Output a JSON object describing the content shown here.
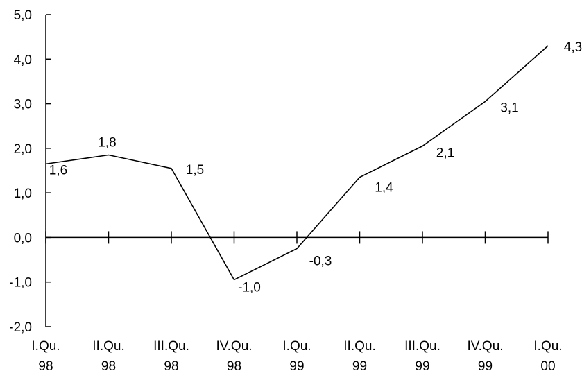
{
  "chart_data": {
    "type": "line",
    "categories": [
      [
        "I.Qu.",
        "98"
      ],
      [
        "II.Qu.",
        "98"
      ],
      [
        "III.Qu.",
        "98"
      ],
      [
        "IV.Qu.",
        "98"
      ],
      [
        "I.Qu.",
        "99"
      ],
      [
        "II.Qu.",
        "99"
      ],
      [
        "III.Qu.",
        "99"
      ],
      [
        "IV.Qu.",
        "99"
      ],
      [
        "I.Qu.",
        "00"
      ]
    ],
    "values": [
      1.65,
      1.85,
      1.55,
      -0.95,
      -0.25,
      1.35,
      2.05,
      3.05,
      4.3
    ],
    "data_labels": [
      "1,6",
      "1,8",
      "1,5",
      "-1,0",
      "-0,3",
      "1,4",
      "2,1",
      "3,1",
      "4,3"
    ],
    "ylim": [
      -2.0,
      5.0
    ],
    "yticks": [
      5.0,
      4.0,
      3.0,
      2.0,
      1.0,
      0.0,
      -1.0,
      -2.0
    ],
    "ytick_labels": [
      "5,0",
      "4,0",
      "3,0",
      "2,0",
      "1,0",
      "0,0",
      "-1,0",
      "-2,0"
    ],
    "title": "",
    "xlabel": "",
    "ylabel": "",
    "grid": false,
    "legend": "none",
    "colors": {
      "line": "#000000",
      "axis": "#000000",
      "text": "#000000"
    }
  }
}
